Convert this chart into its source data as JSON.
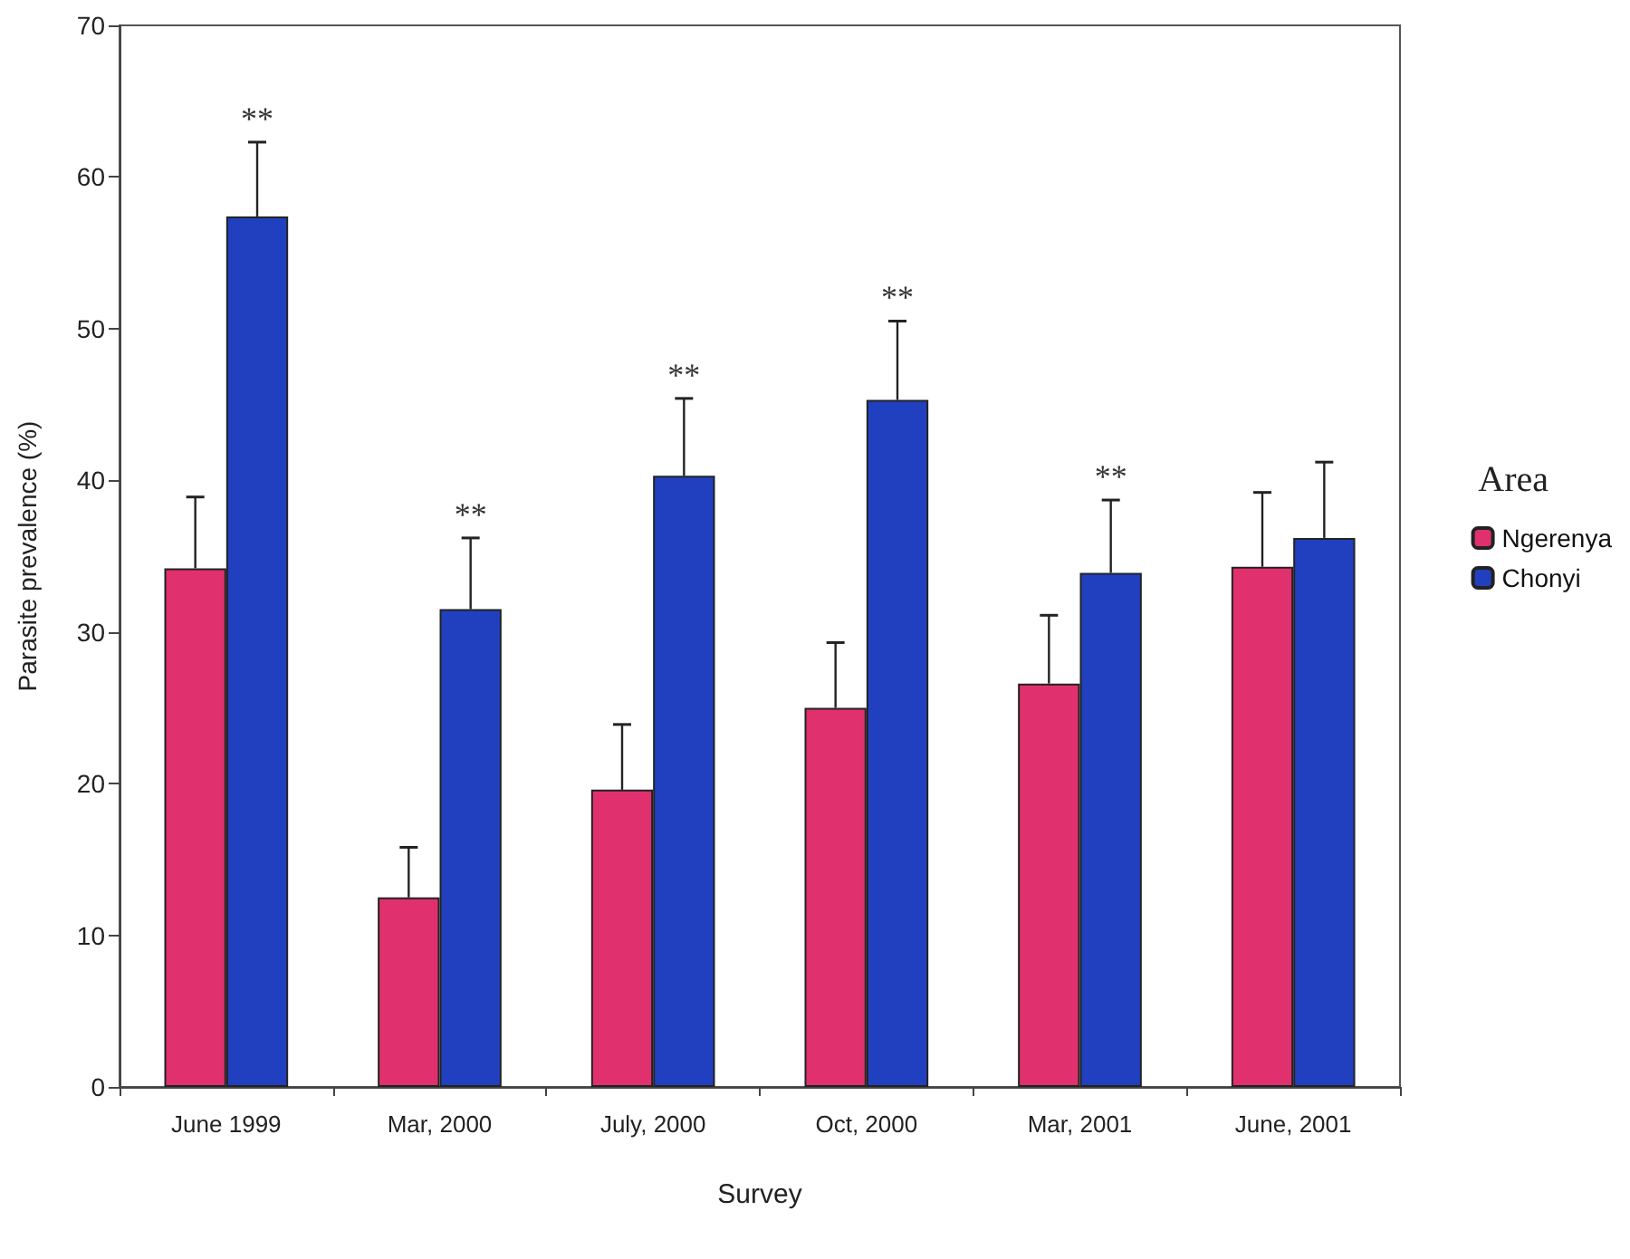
{
  "chart_data": {
    "type": "bar",
    "xlabel": "Survey",
    "ylabel": "Parasite prevalence (%)",
    "legend_title": "Area",
    "categories": [
      "June 1999",
      "Mar, 2000",
      "July, 2000",
      "Oct, 2000",
      "Mar, 2001",
      "June, 2001"
    ],
    "series": [
      {
        "name": "Ngerenya",
        "color": "#e0306e",
        "values": [
          34.2,
          12.5,
          19.6,
          25.0,
          26.6,
          34.3
        ],
        "errors": [
          [
            34.2,
            38.9
          ],
          [
            12.5,
            15.8
          ],
          [
            19.6,
            23.9
          ],
          [
            25.0,
            29.3
          ],
          [
            26.6,
            31.1
          ],
          [
            34.3,
            39.2
          ]
        ]
      },
      {
        "name": "Chonyi",
        "color": "#2040c0",
        "values": [
          57.4,
          31.5,
          40.3,
          45.3,
          33.9,
          36.2
        ],
        "errors": [
          [
            57.4,
            62.3
          ],
          [
            31.5,
            36.2
          ],
          [
            40.3,
            45.4
          ],
          [
            45.3,
            50.5
          ],
          [
            33.9,
            38.7
          ],
          [
            36.2,
            41.2
          ]
        ]
      }
    ],
    "annotations": [
      {
        "text": "**",
        "x": "June 1999",
        "y": 57.4
      },
      {
        "text": "**",
        "x": "Mar, 2000",
        "y": 31.5
      },
      {
        "text": "**",
        "x": "July, 2000",
        "y": 40.3
      },
      {
        "text": "**",
        "x": "Oct, 2000",
        "y": 45.3
      },
      {
        "text": "**",
        "x": "Mar, 2001",
        "y": 33.9
      }
    ],
    "ylim": [
      0,
      70
    ],
    "yticks": [
      0,
      10,
      20,
      30,
      40,
      50,
      60,
      70
    ],
    "grid": false,
    "legend": "right"
  }
}
